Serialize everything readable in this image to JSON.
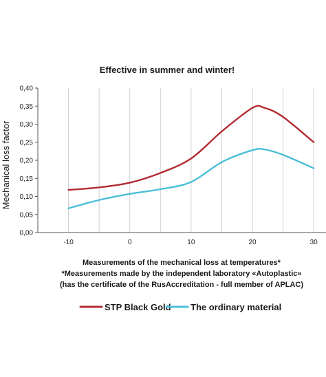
{
  "chart_data": {
    "type": "line",
    "title": "Effective in summer and winter!",
    "xlabel_lines": [
      "Measurements of the mechanical loss at temperatures*",
      "*Measurements made by the independent laboratory «Autoplastic»",
      "(has the certificate of the RusAccreditation - full member of APLAC)"
    ],
    "ylabel": "Mechanical loss factor",
    "xlim": [
      -15,
      32
    ],
    "ylim": [
      0,
      0.4
    ],
    "x_ticks": [
      -10,
      0,
      10,
      20,
      30
    ],
    "x_tick_labels": [
      "-10",
      "0",
      "10",
      "20",
      "30"
    ],
    "y_ticks": [
      0,
      0.05,
      0.1,
      0.15,
      0.2,
      0.25,
      0.3,
      0.35,
      0.4
    ],
    "y_tick_labels": [
      "0,00",
      "0,05",
      "0,10",
      "0,15",
      "0,20",
      "0,25",
      "0,30",
      "0,35",
      "0,40"
    ],
    "grid": "vertical",
    "legend_position": "bottom",
    "series": [
      {
        "name": "STP Black Gold",
        "color": "#b22a30",
        "x": [
          -10,
          -5,
          0,
          5,
          10,
          15,
          20,
          22,
          25,
          30
        ],
        "y": [
          0.118,
          0.125,
          0.138,
          0.165,
          0.205,
          0.28,
          0.345,
          0.345,
          0.32,
          0.25
        ]
      },
      {
        "name": "The ordinary material",
        "color": "#4bbfd8",
        "x": [
          -10,
          -5,
          0,
          5,
          10,
          15,
          20,
          22,
          25,
          30
        ],
        "y": [
          0.067,
          0.09,
          0.107,
          0.12,
          0.14,
          0.195,
          0.228,
          0.23,
          0.215,
          0.178
        ]
      }
    ]
  }
}
